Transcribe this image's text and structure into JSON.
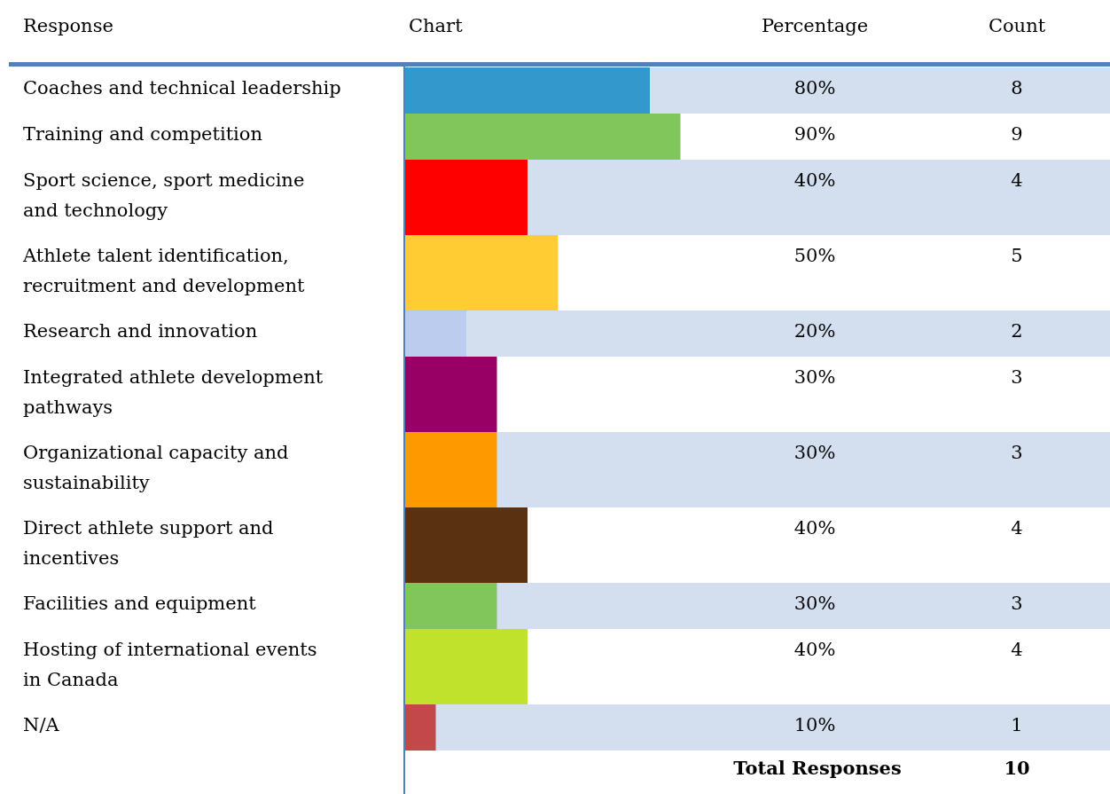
{
  "chart_data": {
    "type": "bar",
    "orientation": "horizontal",
    "categories": [
      "Coaches and technical leadership",
      "Training and competition",
      "Sport science, sport medicine and technology",
      "Athlete talent identification, recruitment and development",
      "Research and innovation",
      "Integrated athlete development pathways",
      "Organizational capacity and sustainability",
      "Direct athlete support and incentives",
      "Facilities and equipment",
      "Hosting of international events in Canada",
      "N/A"
    ],
    "values": [
      80,
      90,
      40,
      50,
      20,
      30,
      30,
      40,
      30,
      40,
      10
    ],
    "colors": [
      "#3399cc",
      "#80c65a",
      "#ff0000",
      "#ffcc33",
      "#bbccee",
      "#990066",
      "#ff9900",
      "#5a3212",
      "#80c65a",
      "#c0e22d",
      "#c2484a"
    ],
    "value_labels": [
      "80%",
      "90%",
      "40%",
      "50%",
      "20%",
      "30%",
      "30%",
      "40%",
      "30%",
      "40%",
      "10%"
    ],
    "annotations": [
      "Response",
      "Chart",
      "Percentage",
      "Count",
      "Total Responses",
      "10",
      "8",
      "9",
      "4",
      "5",
      "2",
      "3",
      "3",
      "4",
      "3",
      "4",
      "1"
    ]
  }
}
